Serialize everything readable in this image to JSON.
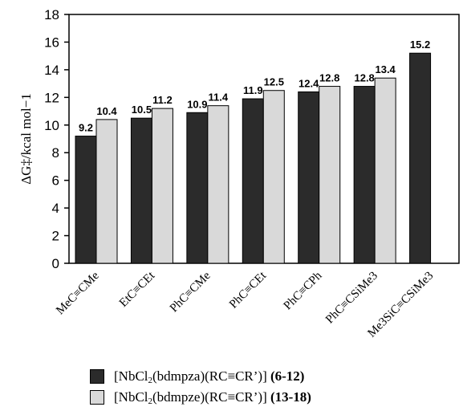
{
  "chart_data": {
    "type": "bar",
    "ylabel": "ΔG‡/kcal mol−1",
    "ylim": [
      0,
      18
    ],
    "yticks": [
      0,
      2,
      4,
      6,
      8,
      10,
      12,
      14,
      16,
      18
    ],
    "categories": [
      "MeC≡CMe",
      "EtC≡CEt",
      "PhC≡CMe",
      "PhC≡CEt",
      "PhC≡CPh",
      "PhC≡CSiMe3",
      "Me3SiC≡CSiMe3"
    ],
    "series": [
      {
        "name": "[NbCl2(bdmpza)(RC≡CR')] (6-12)",
        "color": "#2b2b2b",
        "values": [
          9.2,
          10.5,
          10.9,
          11.9,
          12.4,
          12.8,
          15.2
        ],
        "labels": [
          "9.2",
          "10.5",
          "10.9",
          "11.9",
          "12.4",
          "12.8",
          "15.2"
        ]
      },
      {
        "name": "[NbCl2(bdmpze)(RC≡CR')] (13-18)",
        "color": "#d9d9d9",
        "values": [
          10.4,
          11.2,
          11.4,
          12.5,
          12.8,
          13.4,
          null
        ],
        "labels": [
          "10.4",
          "11.2",
          "11.4",
          "12.5",
          "12.8",
          "13.4",
          null
        ]
      }
    ],
    "grid": false,
    "legend_position": "bottom"
  },
  "legend": {
    "items": [
      {
        "prefix": "[NbCl",
        "sub1": "2",
        "middle": "(bdmpza)(RC≡CR’)] ",
        "bold": "(6-12)",
        "color": "#2b2b2b"
      },
      {
        "prefix": "[NbCl",
        "sub1": "2",
        "middle": "(bdmpze)(RC≡CR’)] ",
        "bold": "(13-18)",
        "color": "#d9d9d9"
      }
    ]
  }
}
